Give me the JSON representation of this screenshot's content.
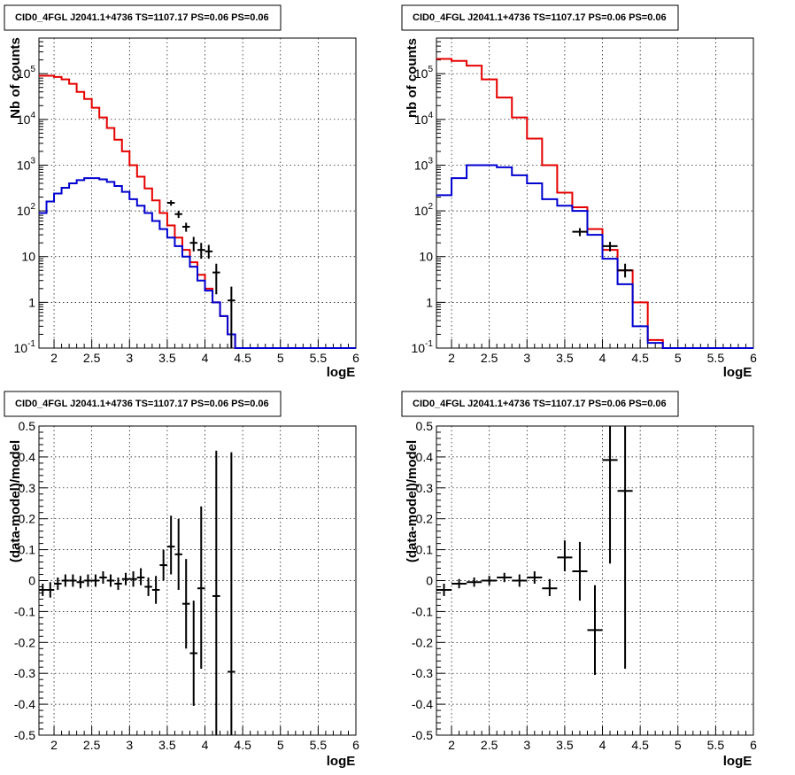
{
  "page": {
    "title": "CID0_4FGL J2041.1+4736 TS=1107.17 PS=0.06 PS=0.06"
  },
  "colors": {
    "model": "#e60000",
    "component": "#0000d0",
    "data": "#000000",
    "grid": "#000000"
  },
  "chart_data": [
    {
      "type": "line",
      "title": "CID0_4FGL J2041.1+4736 TS=1107.17 PS=0.06 PS=0.06",
      "xlabel": "logE",
      "ylabel": "Nb of counts",
      "xlim": [
        1.8,
        6.0
      ],
      "ylim": [
        0.1,
        600000
      ],
      "yscale": "log",
      "grid": true,
      "x_ticks": [
        "2",
        "2.5",
        "3",
        "3.5",
        "4",
        "4.5",
        "5",
        "5.5",
        "6"
      ],
      "y_ticks": [
        "10^-1",
        "1",
        "10",
        "10^2",
        "10^3",
        "10^4",
        "10^5"
      ],
      "bin_edges": [
        1.8,
        1.9,
        2.0,
        2.1,
        2.2,
        2.3,
        2.4,
        2.5,
        2.6,
        2.7,
        2.8,
        2.9,
        3.0,
        3.1,
        3.2,
        3.3,
        3.4,
        3.5,
        3.6,
        3.7,
        3.8,
        3.9,
        4.0,
        4.1,
        4.2,
        4.3,
        4.4,
        4.5,
        4.6,
        4.7,
        4.8,
        4.9,
        5.0,
        5.1,
        5.2,
        5.3,
        5.4,
        5.5,
        5.6,
        5.7,
        5.8,
        5.9,
        6.0
      ],
      "series": [
        {
          "style": "hist",
          "color": "red",
          "values": [
            90000,
            90000,
            85000,
            75000,
            60000,
            40000,
            28000,
            18000,
            11000,
            6500,
            3600,
            2000,
            1000,
            560,
            310,
            170,
            90,
            48,
            26,
            14,
            7.5,
            4,
            2,
            1,
            0.5,
            0.2,
            0.1,
            0.1,
            0.1,
            0.1,
            0.1,
            0.1,
            0.1,
            0.1,
            0.1,
            0.1,
            0.1,
            0.1,
            0.1,
            0.1,
            0.1,
            0.1
          ]
        },
        {
          "style": "hist",
          "color": "blue",
          "values": [
            90,
            160,
            240,
            320,
            400,
            470,
            520,
            520,
            490,
            430,
            350,
            260,
            180,
            130,
            90,
            60,
            40,
            26,
            17,
            10,
            6,
            3,
            1.8,
            1,
            0.5,
            0.2,
            0.1,
            0.1,
            0.1,
            0.1,
            0.1,
            0.1,
            0.1,
            0.1,
            0.1,
            0.1,
            0.1,
            0.1,
            0.1,
            0.1,
            0.1,
            0.1
          ]
        },
        {
          "style": "points",
          "color": "black",
          "points": [
            {
              "x": 3.55,
              "y": 150,
              "xerr": 0.05,
              "ylo": 130,
              "yhi": 170
            },
            {
              "x": 3.65,
              "y": 85,
              "xerr": 0.05,
              "ylo": 70,
              "yhi": 100
            },
            {
              "x": 3.75,
              "y": 45,
              "xerr": 0.05,
              "ylo": 35,
              "yhi": 55
            },
            {
              "x": 3.85,
              "y": 20,
              "xerr": 0.05,
              "ylo": 13,
              "yhi": 27
            },
            {
              "x": 3.95,
              "y": 14,
              "xerr": 0.05,
              "ylo": 9,
              "yhi": 20
            },
            {
              "x": 4.05,
              "y": 13,
              "xerr": 0.05,
              "ylo": 9,
              "yhi": 18
            },
            {
              "x": 4.15,
              "y": 4.5,
              "xerr": 0.05,
              "ylo": 1.5,
              "yhi": 7
            },
            {
              "x": 4.35,
              "y": 1.1,
              "xerr": 0.05,
              "ylo": 0.1,
              "yhi": 2.2
            }
          ]
        }
      ]
    },
    {
      "type": "line",
      "title": "CID0_4FGL J2041.1+4736 TS=1107.17 PS=0.06 PS=0.06",
      "xlabel": "logE",
      "ylabel": "nb of counts",
      "xlim": [
        1.8,
        6.0
      ],
      "ylim": [
        0.1,
        600000
      ],
      "yscale": "log",
      "grid": true,
      "x_ticks": [
        "2",
        "2.5",
        "3",
        "3.5",
        "4",
        "4.5",
        "5",
        "5.5",
        "6"
      ],
      "y_ticks": [
        "10^-1",
        "1",
        "10",
        "10^2",
        "10^3",
        "10^4",
        "10^5"
      ],
      "bin_edges": [
        1.8,
        2.0,
        2.2,
        2.4,
        2.6,
        2.8,
        3.0,
        3.2,
        3.4,
        3.6,
        3.8,
        4.0,
        4.2,
        4.4,
        4.6,
        4.8,
        5.0,
        5.2,
        5.4,
        5.6,
        5.8,
        6.0
      ],
      "series": [
        {
          "style": "hist",
          "color": "red",
          "values": [
            210000,
            190000,
            150000,
            75000,
            30000,
            11000,
            3800,
            1000,
            250,
            120,
            40,
            14,
            5,
            1,
            0.15,
            0.1,
            0.1,
            0.1,
            0.1,
            0.1,
            0.1
          ]
        },
        {
          "style": "hist",
          "color": "blue",
          "values": [
            220,
            520,
            1000,
            1000,
            900,
            600,
            400,
            180,
            130,
            100,
            30,
            9,
            2.5,
            0.3,
            0.13,
            0.1,
            0.1,
            0.1,
            0.1,
            0.1,
            0.1
          ]
        },
        {
          "style": "points",
          "color": "black",
          "points": [
            {
              "x": 3.7,
              "y": 35,
              "xerr": 0.1,
              "ylo": 28,
              "yhi": 42
            },
            {
              "x": 4.1,
              "y": 17,
              "xerr": 0.1,
              "ylo": 13,
              "yhi": 21
            },
            {
              "x": 4.3,
              "y": 5,
              "xerr": 0.1,
              "ylo": 3.5,
              "yhi": 7
            }
          ]
        }
      ]
    },
    {
      "type": "scatter",
      "title": "CID0_4FGL J2041.1+4736 TS=1107.17 PS=0.06 PS=0.06",
      "xlabel": "logE",
      "ylabel": "(data-model)/model",
      "xlim": [
        1.8,
        6.0
      ],
      "ylim": [
        -0.5,
        0.5
      ],
      "grid": true,
      "x_ticks": [
        "2",
        "2.5",
        "3",
        "3.5",
        "4",
        "4.5",
        "5",
        "5.5",
        "6"
      ],
      "y_ticks": [
        "-0.5",
        "-0.4",
        "-0.3",
        "-0.2",
        "-0.1",
        "0",
        "0.1",
        "0.2",
        "0.3",
        "0.4",
        "0.5"
      ],
      "series": [
        {
          "style": "points",
          "color": "black",
          "points": [
            {
              "x": 1.85,
              "y": -0.03,
              "xerr": 0.05,
              "ylo": -0.05,
              "yhi": -0.01
            },
            {
              "x": 1.95,
              "y": -0.03,
              "xerr": 0.05,
              "ylo": -0.055,
              "yhi": -0.005
            },
            {
              "x": 2.05,
              "y": -0.01,
              "xerr": 0.05,
              "ylo": -0.03,
              "yhi": 0.01
            },
            {
              "x": 2.15,
              "y": 0.0,
              "xerr": 0.05,
              "ylo": -0.02,
              "yhi": 0.02
            },
            {
              "x": 2.25,
              "y": 0.0,
              "xerr": 0.05,
              "ylo": -0.02,
              "yhi": 0.02
            },
            {
              "x": 2.35,
              "y": -0.005,
              "xerr": 0.05,
              "ylo": -0.025,
              "yhi": 0.015
            },
            {
              "x": 2.45,
              "y": 0.0,
              "xerr": 0.05,
              "ylo": -0.02,
              "yhi": 0.02
            },
            {
              "x": 2.55,
              "y": 0.0,
              "xerr": 0.05,
              "ylo": -0.02,
              "yhi": 0.02
            },
            {
              "x": 2.65,
              "y": 0.01,
              "xerr": 0.05,
              "ylo": -0.01,
              "yhi": 0.03
            },
            {
              "x": 2.75,
              "y": 0.0,
              "xerr": 0.05,
              "ylo": -0.02,
              "yhi": 0.02
            },
            {
              "x": 2.85,
              "y": -0.01,
              "xerr": 0.05,
              "ylo": -0.03,
              "yhi": 0.01
            },
            {
              "x": 2.95,
              "y": 0.005,
              "xerr": 0.05,
              "ylo": -0.015,
              "yhi": 0.025
            },
            {
              "x": 3.05,
              "y": 0.005,
              "xerr": 0.05,
              "ylo": -0.02,
              "yhi": 0.03
            },
            {
              "x": 3.15,
              "y": 0.01,
              "xerr": 0.05,
              "ylo": -0.015,
              "yhi": 0.04
            },
            {
              "x": 3.25,
              "y": -0.02,
              "xerr": 0.05,
              "ylo": -0.05,
              "yhi": 0.01
            },
            {
              "x": 3.35,
              "y": -0.03,
              "xerr": 0.05,
              "ylo": -0.075,
              "yhi": 0.015
            },
            {
              "x": 3.45,
              "y": 0.05,
              "xerr": 0.05,
              "ylo": 0.0,
              "yhi": 0.1
            },
            {
              "x": 3.55,
              "y": 0.11,
              "xerr": 0.05,
              "ylo": 0.02,
              "yhi": 0.21
            },
            {
              "x": 3.65,
              "y": 0.085,
              "xerr": 0.05,
              "ylo": -0.03,
              "yhi": 0.2
            },
            {
              "x": 3.75,
              "y": -0.075,
              "xerr": 0.05,
              "ylo": -0.22,
              "yhi": 0.07
            },
            {
              "x": 3.85,
              "y": -0.235,
              "xerr": 0.05,
              "ylo": -0.405,
              "yhi": -0.065
            },
            {
              "x": 3.95,
              "y": -0.025,
              "xerr": 0.05,
              "ylo": -0.285,
              "yhi": 0.24
            },
            {
              "x": 4.15,
              "y": -0.05,
              "xerr": 0.05,
              "ylo": -0.52,
              "yhi": 0.42
            },
            {
              "x": 4.35,
              "y": -0.295,
              "xerr": 0.05,
              "ylo": -0.52,
              "yhi": 0.415
            }
          ]
        }
      ]
    },
    {
      "type": "scatter",
      "title": "CID0_4FGL J2041.1+4736 TS=1107.17 PS=0.06 PS=0.06",
      "xlabel": "logE",
      "ylabel": "(data-model)/model",
      "xlim": [
        1.8,
        6.0
      ],
      "ylim": [
        -0.5,
        0.5
      ],
      "grid": true,
      "x_ticks": [
        "2",
        "2.5",
        "3",
        "3.5",
        "4",
        "4.5",
        "5",
        "5.5",
        "6"
      ],
      "y_ticks": [
        "-0.5",
        "-0.4",
        "-0.3",
        "-0.2",
        "-0.1",
        "0",
        "0.1",
        "0.2",
        "0.3",
        "0.4",
        "0.5"
      ],
      "series": [
        {
          "style": "points",
          "color": "black",
          "points": [
            {
              "x": 1.9,
              "y": -0.03,
              "xerr": 0.1,
              "ylo": -0.05,
              "yhi": -0.01
            },
            {
              "x": 2.1,
              "y": -0.01,
              "xerr": 0.1,
              "ylo": -0.025,
              "yhi": 0.005
            },
            {
              "x": 2.3,
              "y": -0.005,
              "xerr": 0.1,
              "ylo": -0.02,
              "yhi": 0.01
            },
            {
              "x": 2.5,
              "y": 0.0,
              "xerr": 0.1,
              "ylo": -0.015,
              "yhi": 0.015
            },
            {
              "x": 2.7,
              "y": 0.01,
              "xerr": 0.1,
              "ylo": -0.005,
              "yhi": 0.025
            },
            {
              "x": 2.9,
              "y": 0.0,
              "xerr": 0.1,
              "ylo": -0.02,
              "yhi": 0.02
            },
            {
              "x": 3.1,
              "y": 0.01,
              "xerr": 0.1,
              "ylo": -0.01,
              "yhi": 0.03
            },
            {
              "x": 3.3,
              "y": -0.025,
              "xerr": 0.1,
              "ylo": -0.05,
              "yhi": 0.005
            },
            {
              "x": 3.5,
              "y": 0.075,
              "xerr": 0.1,
              "ylo": 0.03,
              "yhi": 0.13
            },
            {
              "x": 3.7,
              "y": 0.03,
              "xerr": 0.1,
              "ylo": -0.065,
              "yhi": 0.125
            },
            {
              "x": 3.9,
              "y": -0.16,
              "xerr": 0.1,
              "ylo": -0.305,
              "yhi": -0.015
            },
            {
              "x": 4.1,
              "y": 0.39,
              "xerr": 0.1,
              "ylo": 0.055,
              "yhi": 0.52
            },
            {
              "x": 4.3,
              "y": 0.29,
              "xerr": 0.1,
              "ylo": -0.285,
              "yhi": 0.52
            }
          ]
        }
      ]
    }
  ]
}
